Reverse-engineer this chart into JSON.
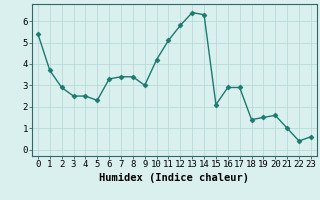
{
  "x": [
    0,
    1,
    2,
    3,
    4,
    5,
    6,
    7,
    8,
    9,
    10,
    11,
    12,
    13,
    14,
    15,
    16,
    17,
    18,
    19,
    20,
    21,
    22,
    23
  ],
  "y": [
    5.4,
    3.7,
    2.9,
    2.5,
    2.5,
    2.3,
    3.3,
    3.4,
    3.4,
    3.0,
    4.2,
    5.1,
    5.8,
    6.4,
    6.3,
    2.1,
    2.9,
    2.9,
    1.4,
    1.5,
    1.6,
    1.0,
    0.4,
    0.6
  ],
  "line_color": "#1a7a6e",
  "marker": "D",
  "marker_size": 2.5,
  "line_width": 1.0,
  "bg_color": "#d9f0ef",
  "grid_color": "#b8dbd9",
  "grid_color_major": "#c8a0a0",
  "xlabel": "Humidex (Indice chaleur)",
  "xlabel_fontsize": 7.5,
  "xlabel_fontweight": "bold",
  "xlim": [
    -0.5,
    23.5
  ],
  "ylim": [
    -0.3,
    6.8
  ],
  "yticks": [
    0,
    1,
    2,
    3,
    4,
    5,
    6
  ],
  "xtick_labels": [
    "0",
    "1",
    "2",
    "3",
    "4",
    "5",
    "6",
    "7",
    "8",
    "9",
    "10",
    "11",
    "12",
    "13",
    "14",
    "15",
    "16",
    "17",
    "18",
    "19",
    "20",
    "21",
    "22",
    "23"
  ],
  "tick_fontsize": 6.5,
  "spine_color": "#336666"
}
